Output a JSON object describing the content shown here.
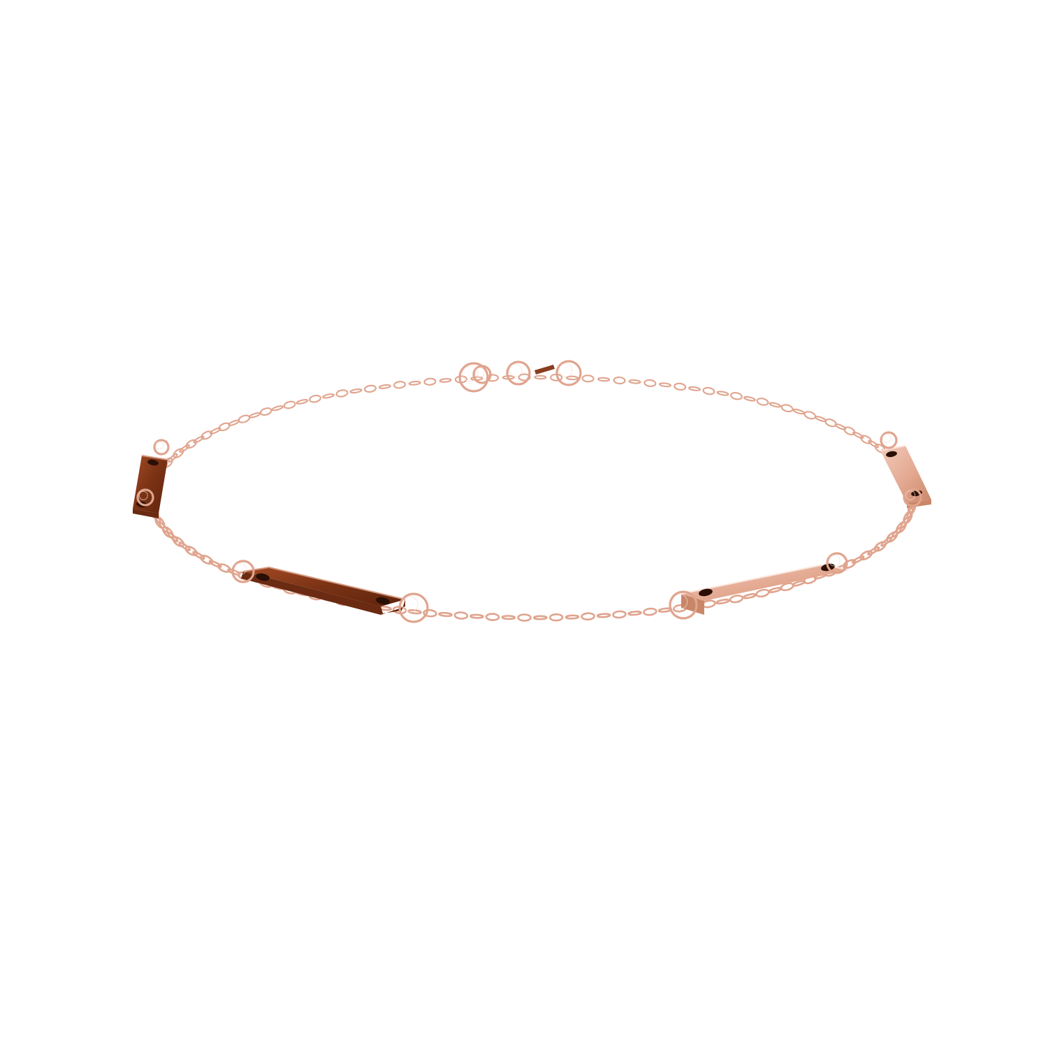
{
  "scene": {
    "background_color": "#ffffff",
    "subject": "bracelet",
    "metal_colors": {
      "chain": "#e0a48e",
      "bar_light": "#eab6a3",
      "bar_mid": "#c98669",
      "bar_dark": "#8a3d1f",
      "bar_darkest": "#6b2a12",
      "hole": "#2a0f05"
    },
    "bars": [
      {
        "name": "left-back-bar-icon",
        "tone": "dark"
      },
      {
        "name": "left-front-bar-icon",
        "tone": "dark"
      },
      {
        "name": "right-front-bar-icon",
        "tone": "light"
      },
      {
        "name": "right-back-bar-icon",
        "tone": "light"
      }
    ],
    "clasp": {
      "name": "clasp-icon"
    }
  }
}
